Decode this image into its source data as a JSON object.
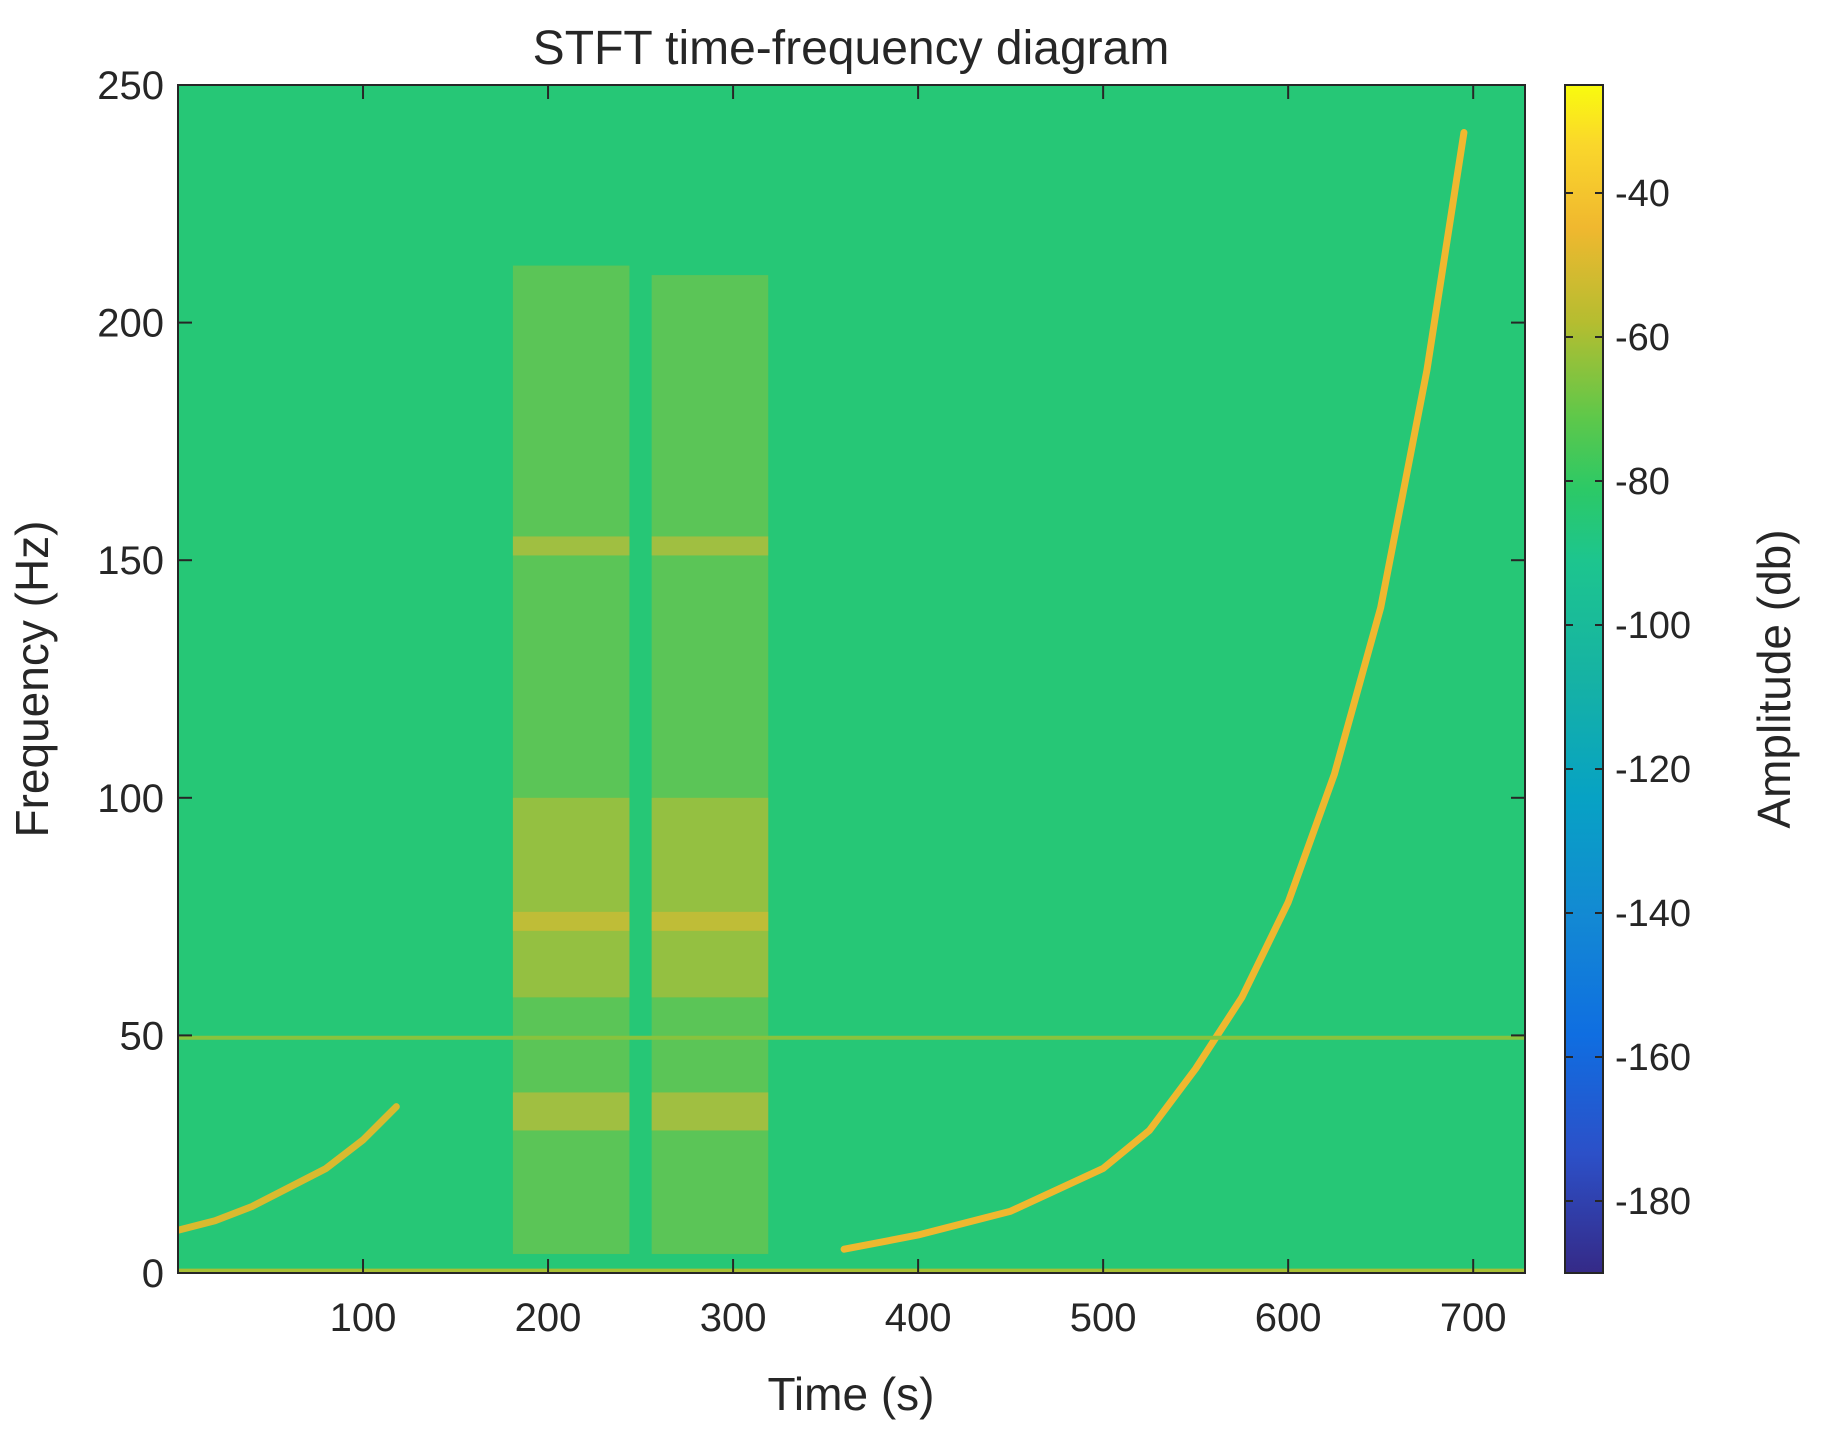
{
  "chart_data": {
    "type": "heatmap",
    "title": "STFT time-frequency diagram",
    "xlabel": "Time (s)",
    "ylabel": "Frequency (Hz)",
    "xlim": [
      0,
      728
    ],
    "ylim": [
      0,
      250
    ],
    "x_ticks": [
      100,
      200,
      300,
      400,
      500,
      600,
      700
    ],
    "y_ticks": [
      0,
      50,
      100,
      150,
      200,
      250
    ],
    "background_level_db": -85,
    "colorbar": {
      "label": "Amplitude (db)",
      "range": [
        -190,
        -25
      ],
      "ticks": [
        -40,
        -60,
        -80,
        -100,
        -120,
        -140,
        -160,
        -180
      ],
      "colormap": "parula"
    },
    "features": [
      {
        "kind": "chirp",
        "x": [
          0,
          20,
          40,
          60,
          80,
          100,
          118
        ],
        "y": [
          9,
          11,
          14,
          18,
          22,
          28,
          35
        ],
        "level_db": -50
      },
      {
        "kind": "chirp",
        "x": [
          360,
          400,
          450,
          500,
          525,
          550,
          575,
          600,
          625,
          650,
          675,
          695
        ],
        "y": [
          5,
          8,
          13,
          22,
          30,
          43,
          58,
          78,
          105,
          140,
          190,
          240
        ],
        "level_db": -45
      },
      {
        "kind": "hline",
        "x": [
          0,
          728
        ],
        "y": 49.5,
        "level_db": -65
      },
      {
        "kind": "hline",
        "x": [
          0,
          728
        ],
        "y": 0.5,
        "level_db": -60
      },
      {
        "kind": "block",
        "x": [
          181,
          244
        ],
        "y": [
          4,
          212
        ],
        "level_db": -65
      },
      {
        "kind": "block",
        "x": [
          256,
          319
        ],
        "y": [
          4,
          210
        ],
        "level_db": -65
      },
      {
        "kind": "block",
        "x": [
          181,
          244
        ],
        "y": [
          58,
          100
        ],
        "level_db": -55
      },
      {
        "kind": "block",
        "x": [
          256,
          319
        ],
        "y": [
          58,
          100
        ],
        "level_db": -55
      },
      {
        "kind": "block",
        "x": [
          181,
          244
        ],
        "y": [
          30,
          38
        ],
        "level_db": -50
      },
      {
        "kind": "block",
        "x": [
          256,
          319
        ],
        "y": [
          30,
          38
        ],
        "level_db": -50
      },
      {
        "kind": "block",
        "x": [
          181,
          244
        ],
        "y": [
          151,
          155
        ],
        "level_db": -50
      },
      {
        "kind": "block",
        "x": [
          256,
          319
        ],
        "y": [
          151,
          155
        ],
        "level_db": -50
      },
      {
        "kind": "block",
        "x": [
          181,
          244
        ],
        "y": [
          72,
          76
        ],
        "level_db": -48
      },
      {
        "kind": "block",
        "x": [
          256,
          319
        ],
        "y": [
          72,
          76
        ],
        "level_db": -48
      }
    ]
  }
}
